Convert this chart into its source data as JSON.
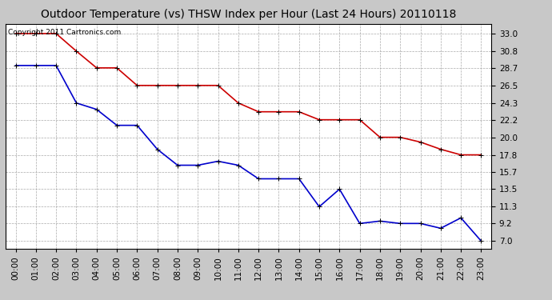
{
  "title": "Outdoor Temperature (vs) THSW Index per Hour (Last 24 Hours) 20110118",
  "copyright_text": "Copyright 2011 Cartronics.com",
  "hours": [
    0,
    1,
    2,
    3,
    4,
    5,
    6,
    7,
    8,
    9,
    10,
    11,
    12,
    13,
    14,
    15,
    16,
    17,
    18,
    19,
    20,
    21,
    22,
    23
  ],
  "hour_labels": [
    "00:00",
    "01:00",
    "02:00",
    "03:00",
    "04:00",
    "05:00",
    "06:00",
    "07:00",
    "08:00",
    "09:00",
    "10:00",
    "11:00",
    "12:00",
    "13:00",
    "14:00",
    "15:00",
    "16:00",
    "17:00",
    "18:00",
    "19:00",
    "20:00",
    "21:00",
    "22:00",
    "23:00"
  ],
  "thsw_values": [
    33.0,
    33.0,
    33.0,
    30.8,
    28.7,
    28.7,
    26.5,
    26.5,
    26.5,
    26.5,
    26.5,
    24.3,
    23.2,
    23.2,
    23.2,
    22.2,
    22.2,
    22.2,
    20.0,
    20.0,
    19.4,
    18.5,
    17.8,
    17.8
  ],
  "temp_values": [
    29.0,
    29.0,
    29.0,
    24.3,
    23.5,
    21.5,
    21.5,
    18.5,
    16.5,
    16.5,
    17.0,
    16.5,
    14.8,
    14.8,
    14.8,
    11.3,
    13.5,
    9.2,
    9.5,
    9.2,
    9.2,
    8.6,
    9.9,
    7.0
  ],
  "thsw_color": "#cc0000",
  "temp_color": "#0000cc",
  "background_color": "#c8c8c8",
  "plot_bg_color": "#ffffff",
  "grid_color": "#aaaaaa",
  "yticks": [
    7.0,
    9.2,
    11.3,
    13.5,
    15.7,
    17.8,
    20.0,
    22.2,
    24.3,
    26.5,
    28.7,
    30.8,
    33.0
  ],
  "ylim": [
    6.0,
    34.2
  ],
  "marker": "+",
  "marker_size": 5,
  "line_width": 1.2,
  "title_fontsize": 10,
  "tick_fontsize": 7.5,
  "copyright_fontsize": 6.5
}
